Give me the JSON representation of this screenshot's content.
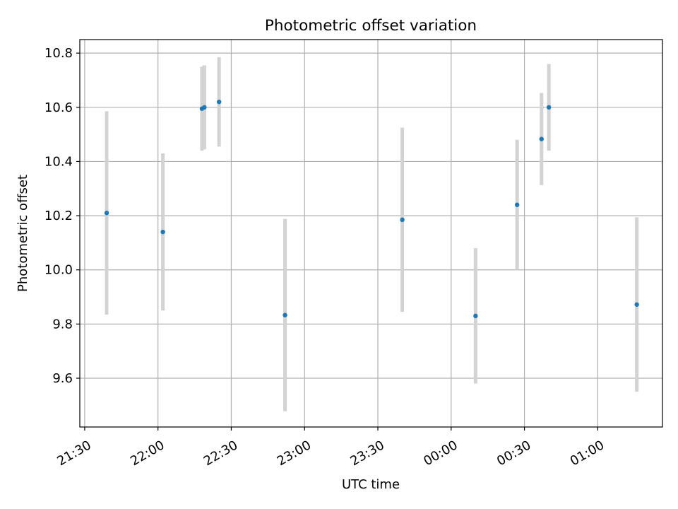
{
  "chart_data": {
    "type": "scatter",
    "title": "Photometric offset variation",
    "xlabel": "UTC time",
    "ylabel": "Photometric offset",
    "x_ticks": [
      "21:30",
      "22:00",
      "22:30",
      "23:00",
      "23:30",
      "00:00",
      "00:30",
      "01:00"
    ],
    "x_tick_minutes": [
      0,
      30,
      60,
      90,
      120,
      150,
      180,
      210
    ],
    "xlim_minutes": [
      -2,
      236.5
    ],
    "y_ticks": [
      "9.6",
      "9.8",
      "10.0",
      "10.2",
      "10.4",
      "10.6",
      "10.8"
    ],
    "y_tick_values": [
      9.6,
      9.8,
      10.0,
      10.2,
      10.4,
      10.6,
      10.8
    ],
    "ylim": [
      9.42,
      10.85
    ],
    "grid": true,
    "series": [
      {
        "points": [
          {
            "t": "21:39",
            "y": 10.21,
            "err": 0.375
          },
          {
            "t": "22:02",
            "y": 10.14,
            "err": 0.29
          },
          {
            "t": "22:18",
            "y": 10.595,
            "err": 0.155
          },
          {
            "t": "22:19",
            "y": 10.6,
            "err": 0.155
          },
          {
            "t": "22:25",
            "y": 10.62,
            "err": 0.165
          },
          {
            "t": "22:52",
            "y": 9.833,
            "err": 0.355
          },
          {
            "t": "23:40",
            "y": 10.185,
            "err": 0.34
          },
          {
            "t": "00:10",
            "y": 9.83,
            "err": 0.25
          },
          {
            "t": "00:27",
            "y": 10.24,
            "err": 0.24
          },
          {
            "t": "00:37",
            "y": 10.483,
            "err": 0.17
          },
          {
            "t": "00:40",
            "y": 10.6,
            "err": 0.16
          },
          {
            "t": "01:16",
            "y": 9.872,
            "err": 0.322
          }
        ]
      }
    ],
    "colors": {
      "point": "#1f77b4",
      "errorbar": "#d3d3d3",
      "grid": "#b0b0b0",
      "axis": "#000000"
    }
  }
}
